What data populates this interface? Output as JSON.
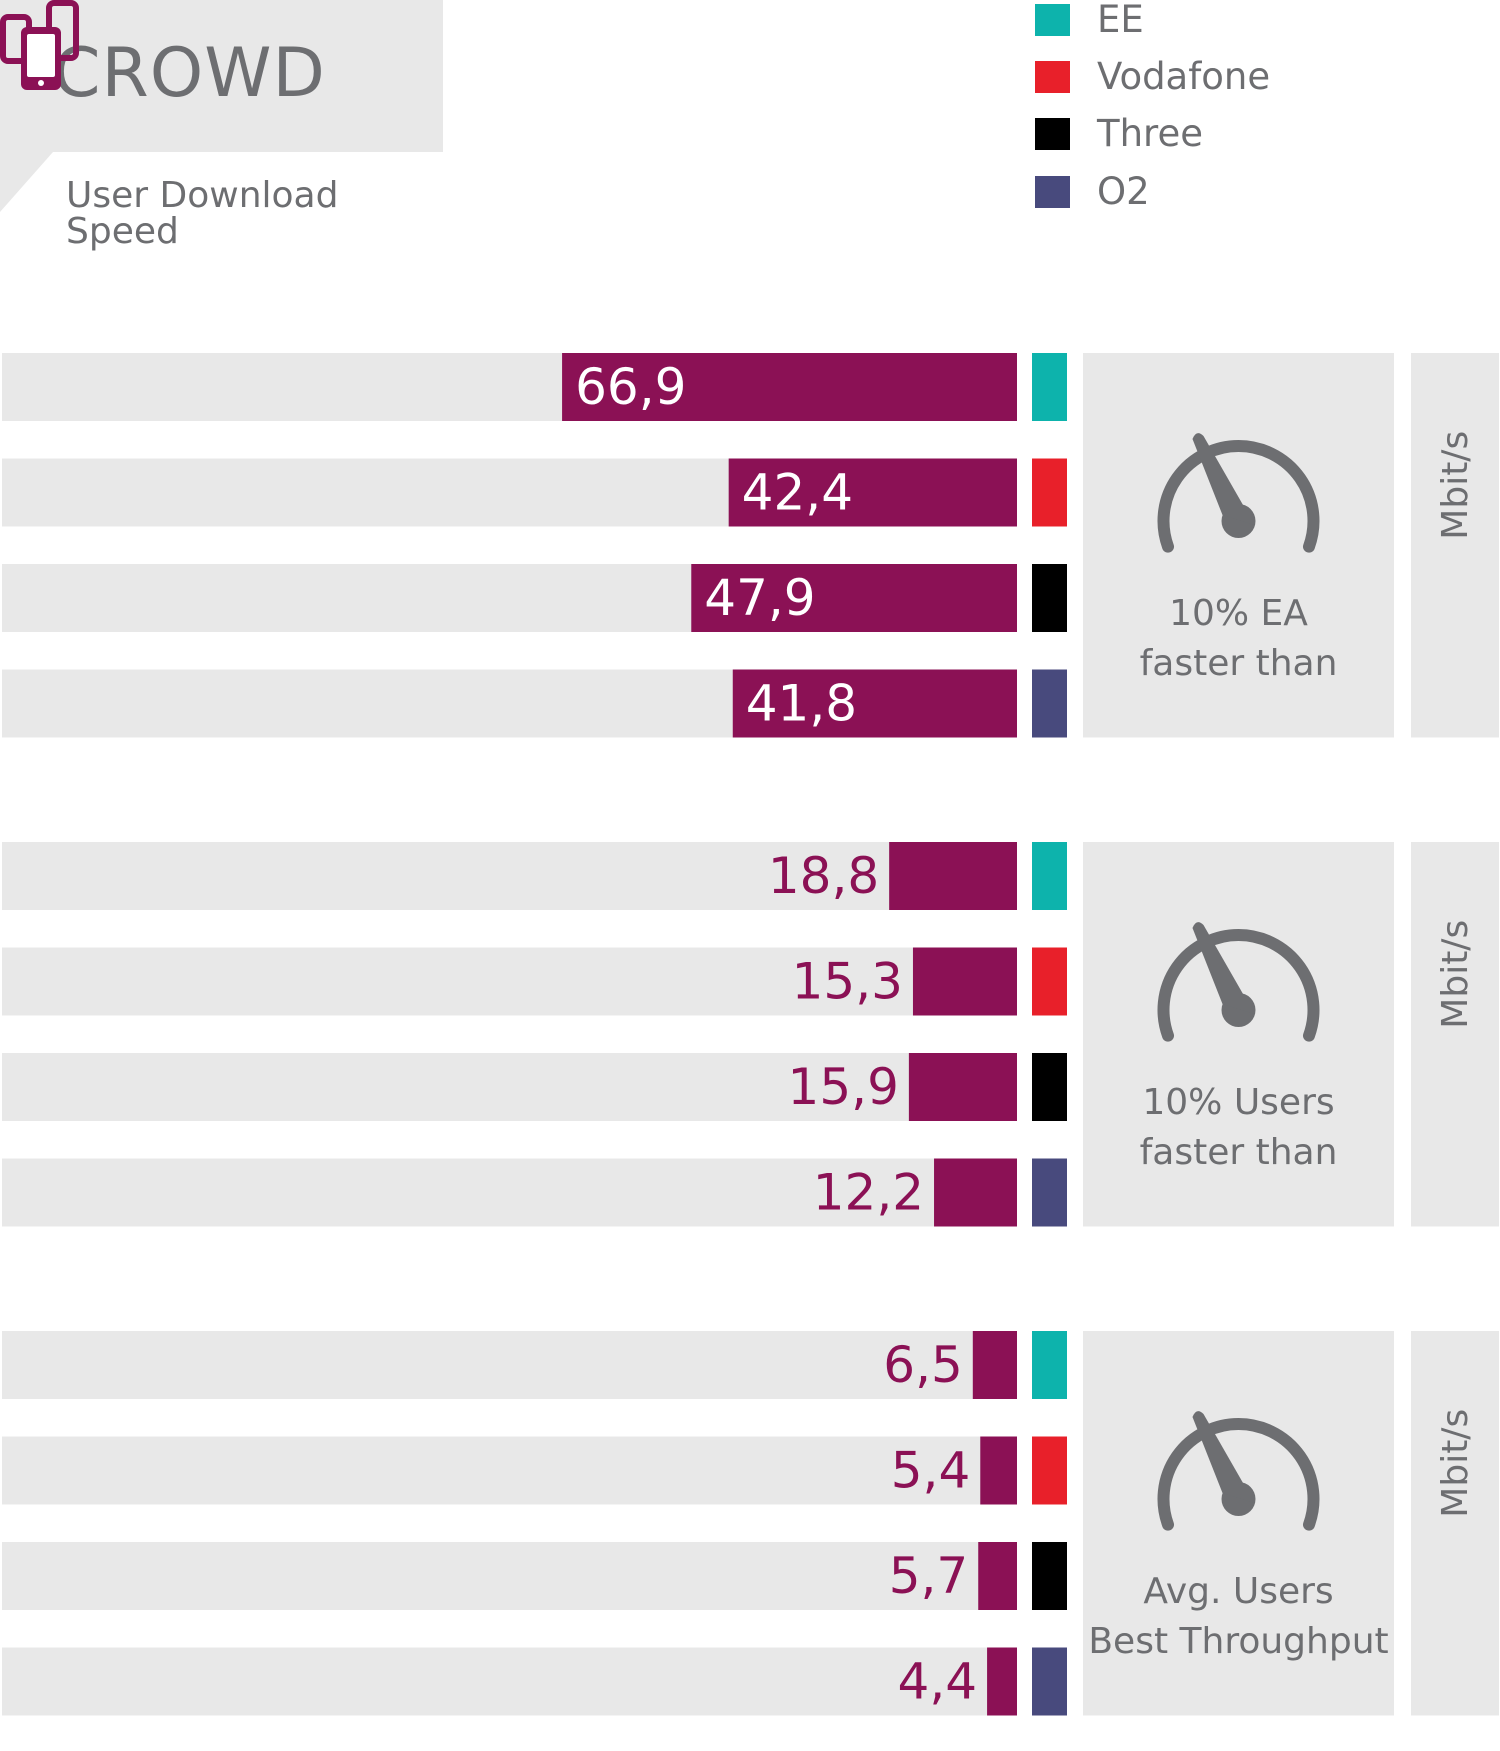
{
  "header": {
    "brand": "CROWD",
    "subtitle": "User Download Speed",
    "icon": "smartphones-icon"
  },
  "colors": {
    "bar": "#8b1155",
    "track": "#e8e8e8",
    "panel": "#e8e8e8",
    "text_gray": "#6d6e71",
    "gauge": "#6d6e71",
    "label_in": "#ffffff",
    "label_out": "#8b1155"
  },
  "legend": [
    {
      "label": "EE",
      "color": "#0db3ac"
    },
    {
      "label": "Vodafone",
      "color": "#e8202a"
    },
    {
      "label": "Three",
      "color": "#000000"
    },
    {
      "label": "O2",
      "color": "#484a7d"
    }
  ],
  "chart_data": {
    "type": "bar",
    "orientation": "horizontal",
    "categories": [
      "EE",
      "Vodafone",
      "Three",
      "O2"
    ],
    "xlim": [
      0,
      100
    ],
    "groups": [
      {
        "caption": [
          "10% EA",
          "faster than"
        ],
        "unit": "Mbit/s",
        "values": [
          66.9,
          42.4,
          47.9,
          41.8
        ],
        "labels": [
          "66,9",
          "42,4",
          "47,9",
          "41,8"
        ]
      },
      {
        "caption": [
          "10% Users",
          "faster than"
        ],
        "unit": "Mbit/s",
        "values": [
          18.8,
          15.3,
          15.9,
          12.2
        ],
        "labels": [
          "18,8",
          "15,3",
          "15,9",
          "12,2"
        ]
      },
      {
        "caption": [
          "Avg. Users",
          "Best Throughput"
        ],
        "unit": "Mbit/s",
        "values": [
          6.5,
          5.4,
          5.7,
          4.4
        ],
        "labels": [
          "6,5",
          "5,4",
          "5,7",
          "4,4"
        ]
      }
    ]
  }
}
